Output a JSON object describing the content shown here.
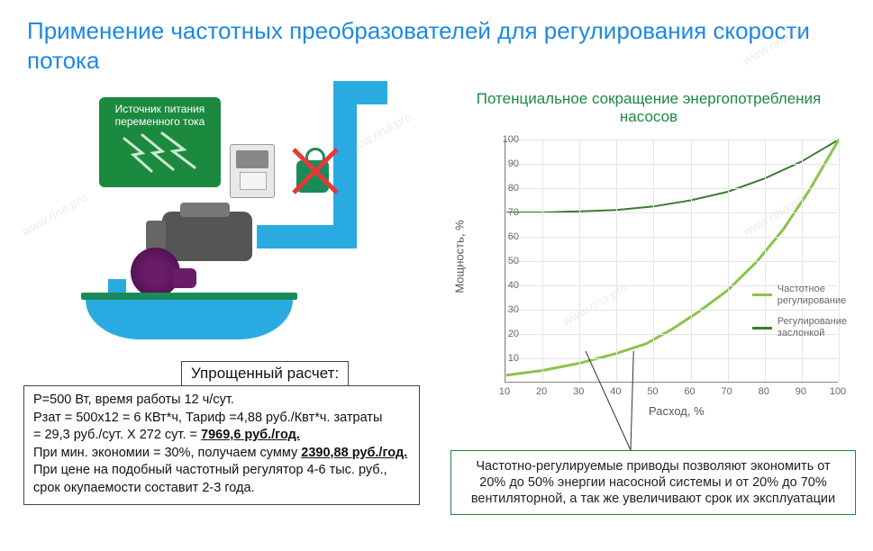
{
  "title": "Применение частотных преобразователей для регулирования скорости потока",
  "power_source_label": "Источник питания переменного тока",
  "calc": {
    "heading": "Упрощенный расчет:",
    "line1": "P=500 Вт, время работы 12 ч/сут.",
    "line2_a": "Pзат = 500х12 = 6 КВт*ч, Тариф =4,88 руб./Квт*ч. затраты",
    "line2_b": "= 29,3 руб./сут. X 272 сут. = ",
    "cost_year": "7969,6 руб./год.",
    "line3_a": "При мин. экономии = 30%, получаем сумму ",
    "saving": "2390,88 руб./год.",
    "line4": " При цене на подобный частотный регулятор 4-6 тыс. руб., срок окупаемости составит 2-3 года."
  },
  "chart": {
    "title": "Потенциальное сокращение энергопотребления насосов",
    "ylabel": "Мощность, %",
    "xlabel": "Расход, %",
    "xticks": [
      10,
      20,
      30,
      40,
      50,
      60,
      70,
      80,
      90,
      100
    ],
    "yticks": [
      10,
      20,
      30,
      40,
      50,
      60,
      70,
      80,
      90,
      100
    ],
    "xlim": [
      10,
      100
    ],
    "ylim": [
      0,
      100
    ],
    "series": [
      {
        "name": "Регулирование заслонкой",
        "color": "#3a7d2e",
        "width": 2,
        "points": [
          [
            10,
            70
          ],
          [
            20,
            70
          ],
          [
            30,
            70.5
          ],
          [
            40,
            71
          ],
          [
            50,
            72.5
          ],
          [
            60,
            75
          ],
          [
            70,
            78.5
          ],
          [
            80,
            84
          ],
          [
            90,
            91
          ],
          [
            100,
            100
          ]
        ]
      },
      {
        "name": "Частотное регулирование",
        "color": "#8bc34a",
        "width": 3,
        "points": [
          [
            10,
            3
          ],
          [
            20,
            5
          ],
          [
            30,
            8
          ],
          [
            40,
            12
          ],
          [
            48,
            16
          ],
          [
            55,
            22
          ],
          [
            62,
            29
          ],
          [
            70,
            38
          ],
          [
            78,
            50
          ],
          [
            85,
            63
          ],
          [
            92,
            79
          ],
          [
            100,
            100
          ]
        ]
      }
    ],
    "legend": [
      {
        "label_l1": "Частотное",
        "label_l2": "регулирование",
        "color": "#8bc34a"
      },
      {
        "label_l1": "Регулирование",
        "label_l2": "заслонкой",
        "color": "#3a7d2e"
      }
    ],
    "grid_color": "#e5e5e5",
    "axis_color": "#888888",
    "bg": "#ffffff"
  },
  "note": "Частотно-регулируемые приводы позволяют экономить от 20% до 50% энергии насосной системы и от 20% до 70% вентиляторной, а так же увеличивают срок их эксплуатации",
  "watermark": "www.rina.pro",
  "colors": {
    "title": "#1e88e5",
    "green_dark": "#1b8a3f",
    "green_valve": "#1b8a5a",
    "pipe": "#29abe2",
    "red": "#e53935"
  }
}
